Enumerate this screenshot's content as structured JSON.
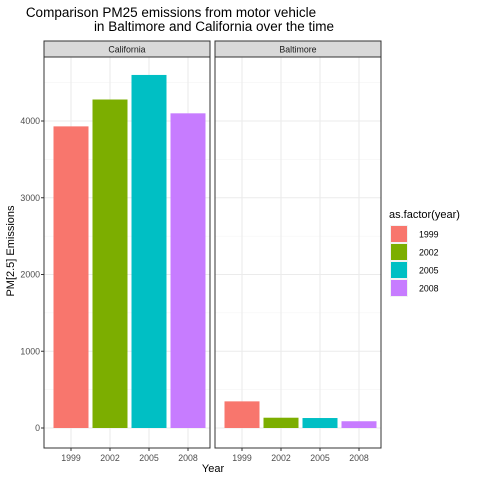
{
  "chart_data": {
    "type": "bar",
    "title_line1": "Comparison PM25 emissions from motor vehicle",
    "title_line2": "in Baltimore  and California over the time",
    "xlabel": "Year",
    "ylabel": "PM[2.5] Emissions",
    "ylim": [
      0,
      4800
    ],
    "yticks": [
      0,
      1000,
      2000,
      3000,
      4000
    ],
    "grid": true,
    "categories": [
      "1999",
      "2002",
      "2005",
      "2008"
    ],
    "colors": [
      "#F8766D",
      "#7CAE00",
      "#00BFC4",
      "#C77CFF"
    ],
    "panels": [
      {
        "name": "California",
        "values": [
          3930,
          4280,
          4600,
          4100
        ]
      },
      {
        "name": "Baltimore",
        "values": [
          347,
          134,
          130,
          88
        ]
      }
    ],
    "legend": {
      "title": "as.factor(year)",
      "placement": "right",
      "labels": [
        "1999",
        "2002",
        "2005",
        "2008"
      ]
    }
  }
}
